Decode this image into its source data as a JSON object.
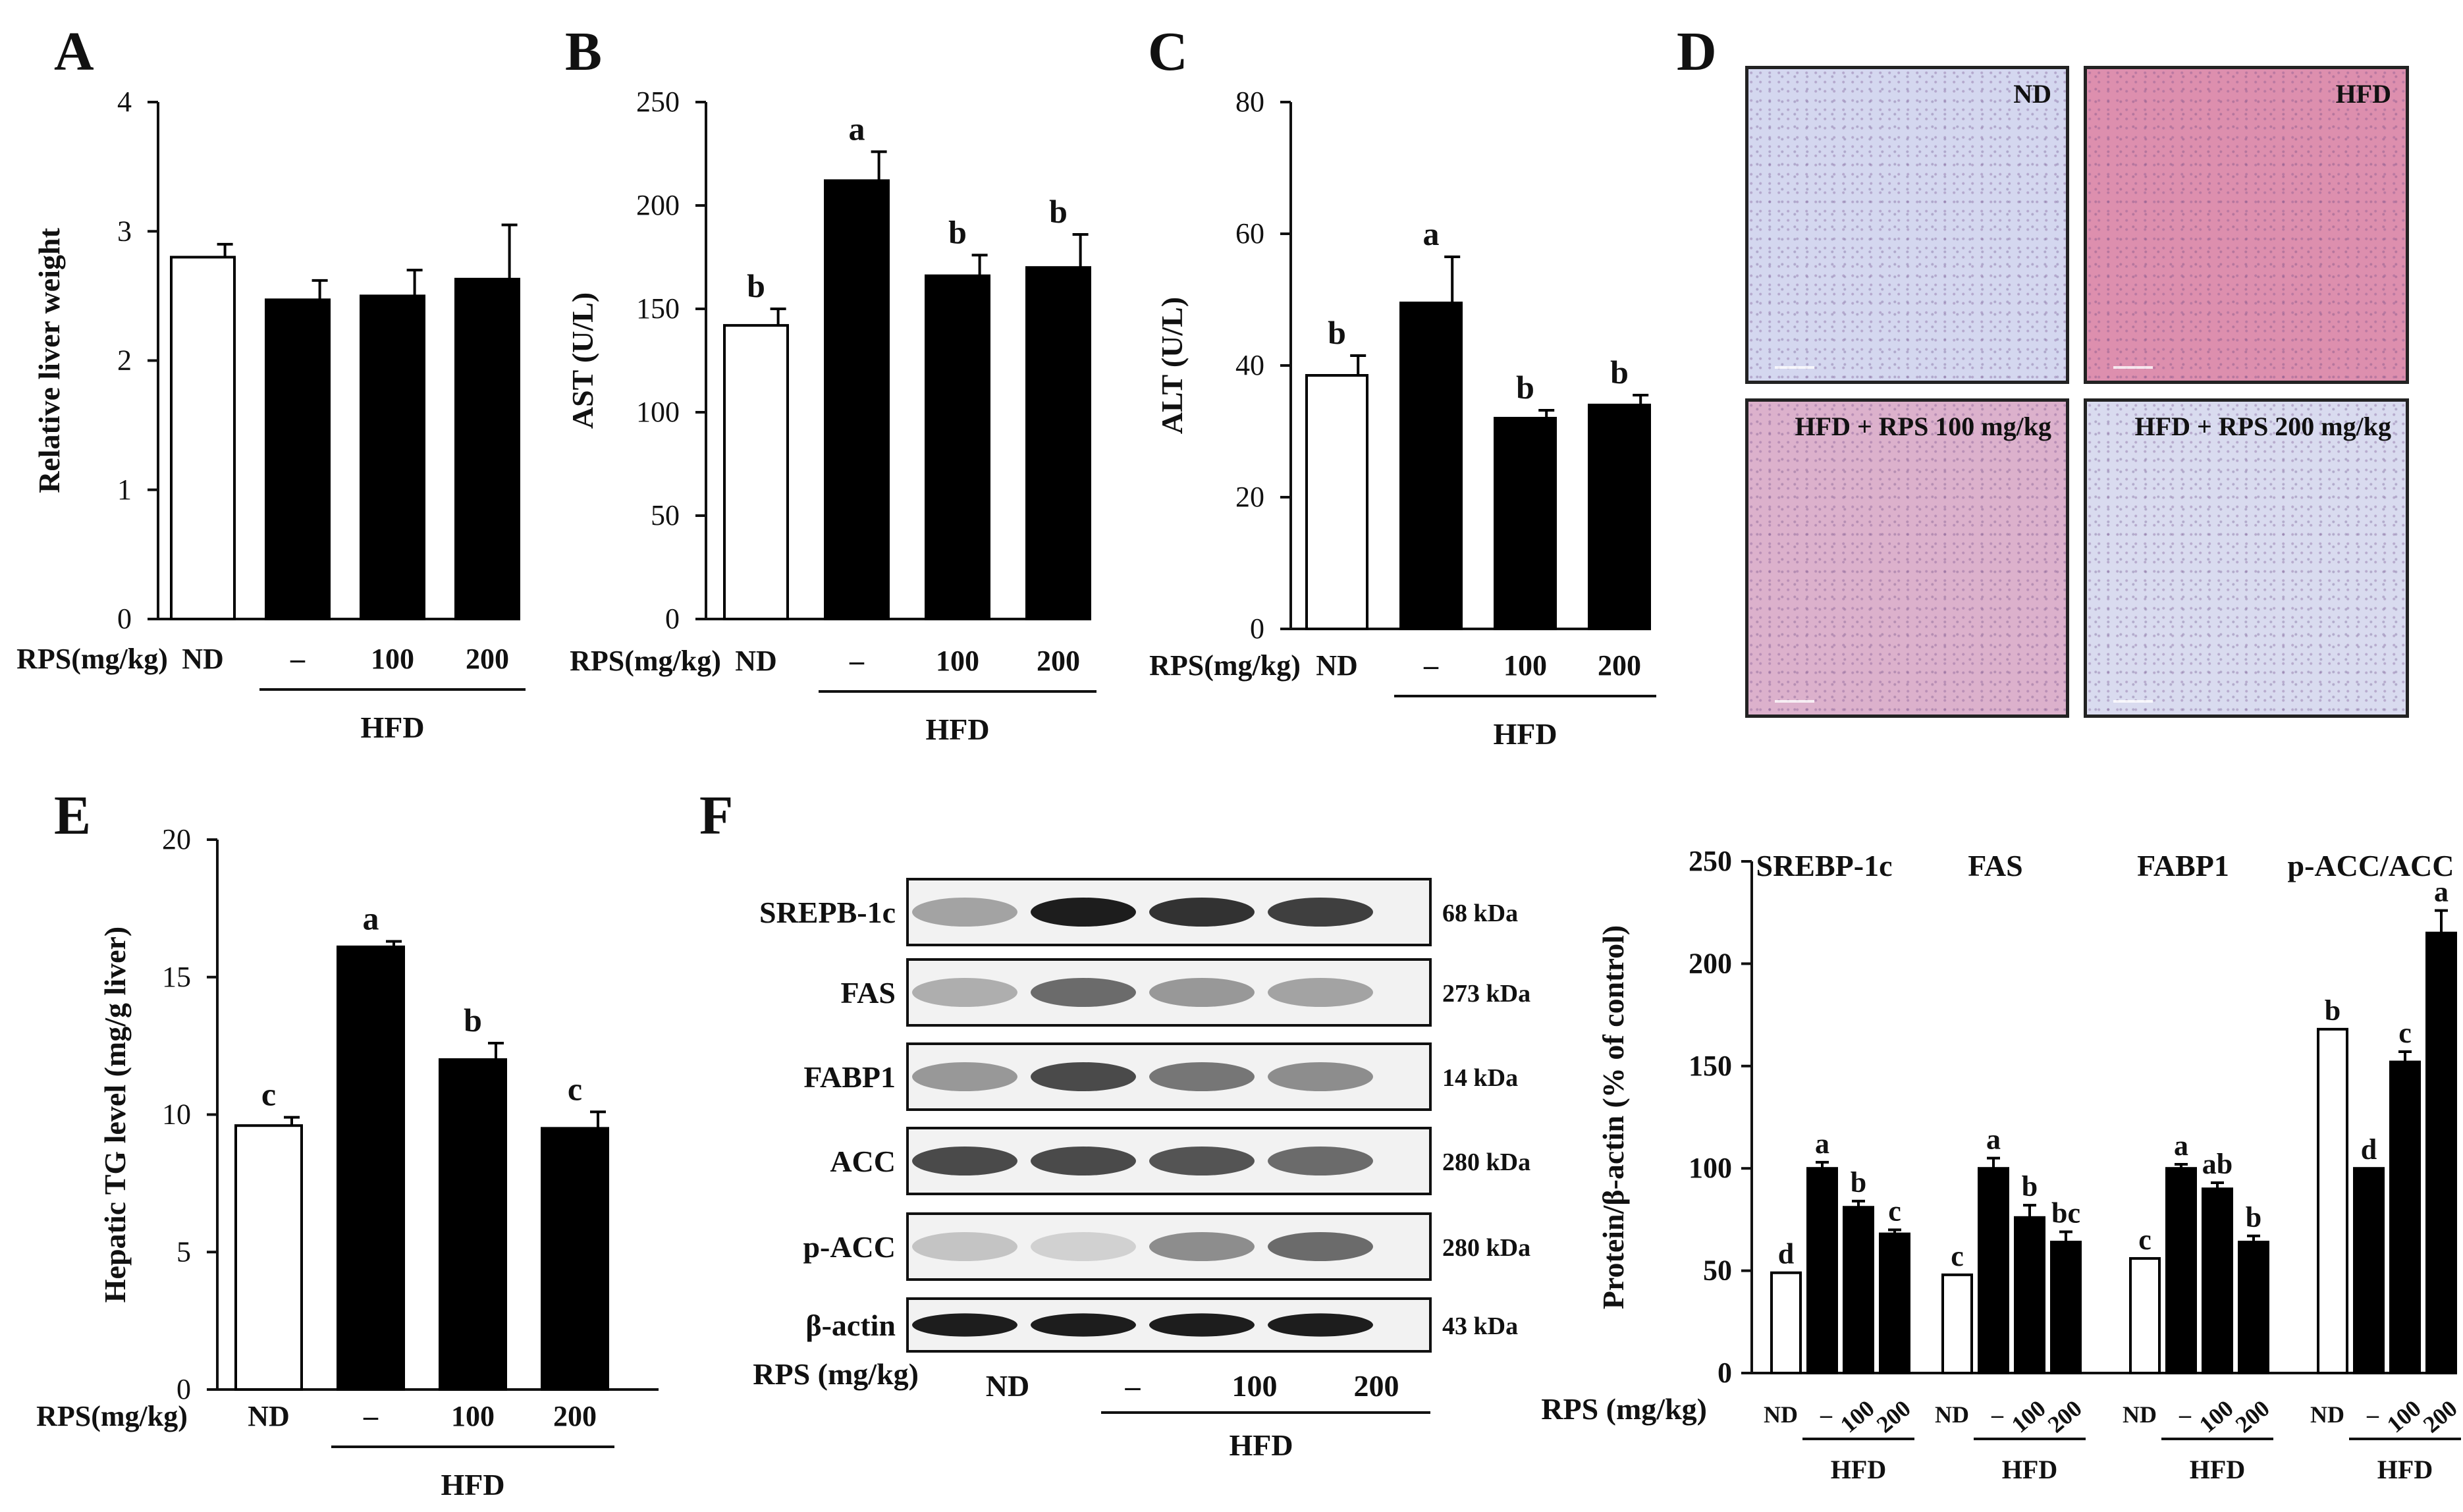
{
  "panel_letters": [
    "A",
    "B",
    "C",
    "D",
    "E",
    "F"
  ],
  "x_axis": {
    "rps_label": "RPS (mg/kg)",
    "rps_label_compact": "RPS(mg/kg)",
    "groups": [
      "ND",
      "–",
      "100",
      "200"
    ],
    "hfd": "HFD"
  },
  "micrographs": {
    "labels": [
      "ND",
      "HFD",
      "HFD + RPS 100 mg/kg",
      "HFD + RPS 200 mg/kg"
    ],
    "colors": [
      "#d4d7ef",
      "#dd8fae",
      "#dcb1cc",
      "#d9dbef"
    ]
  },
  "western": {
    "proteins": [
      "SREPB-1c",
      "FAS",
      "FABP1",
      "ACC",
      "p-ACC",
      "β-actin"
    ],
    "sizes": [
      "68 kDa",
      "273 kDa",
      "14 kDa",
      "280 kDa",
      "280 kDa",
      "43 kDa"
    ],
    "lane_labels": [
      "ND",
      "–",
      "100",
      "200"
    ],
    "rps_label": "RPS (mg/kg)",
    "hfd": "HFD"
  },
  "chart_data": [
    {
      "panel": "A",
      "type": "bar",
      "categories": [
        "ND",
        "–",
        "100",
        "200"
      ],
      "values": [
        2.8,
        2.47,
        2.5,
        2.63
      ],
      "errors": [
        0.1,
        0.15,
        0.2,
        0.42
      ],
      "letters": [
        "",
        "",
        "",
        ""
      ],
      "ylabel": "Relative liver weight",
      "ylim": [
        0,
        4
      ],
      "yticks": [
        "0",
        "1",
        "2",
        "3",
        "4"
      ],
      "fills": [
        "#ffffff",
        "#000000",
        "#000000",
        "#000000"
      ]
    },
    {
      "panel": "B",
      "type": "bar",
      "categories": [
        "ND",
        "–",
        "100",
        "200"
      ],
      "values": [
        142,
        212,
        166,
        170
      ],
      "errors": [
        8,
        14,
        10,
        16
      ],
      "letters": [
        "b",
        "a",
        "b",
        "b"
      ],
      "ylabel": "AST (U/L)",
      "ylim": [
        0,
        250
      ],
      "yticks": [
        "0",
        "50",
        "100",
        "150",
        "200",
        "250"
      ],
      "fills": [
        "#ffffff",
        "#000000",
        "#000000",
        "#000000"
      ]
    },
    {
      "panel": "C",
      "type": "bar",
      "categories": [
        "ND",
        "–",
        "100",
        "200"
      ],
      "values": [
        38.5,
        49.5,
        32,
        34
      ],
      "errors": [
        3,
        7,
        1.2,
        1.5
      ],
      "letters": [
        "b",
        "a",
        "b",
        "b"
      ],
      "ylabel": "ALT (U/L)",
      "ylim": [
        0,
        80
      ],
      "yticks": [
        "0",
        "20",
        "40",
        "60",
        "80"
      ],
      "fills": [
        "#ffffff",
        "#000000",
        "#000000",
        "#000000"
      ]
    },
    {
      "panel": "E",
      "type": "bar",
      "categories": [
        "ND",
        "–",
        "100",
        "200"
      ],
      "values": [
        9.6,
        16.1,
        12,
        9.5
      ],
      "errors": [
        0.3,
        0.2,
        0.6,
        0.6
      ],
      "letters": [
        "c",
        "a",
        "b",
        "c"
      ],
      "ylabel": "Hepatic TG level (mg/g liver)",
      "ylim": [
        0,
        20
      ],
      "yticks": [
        "0",
        "5",
        "10",
        "15",
        "20"
      ],
      "fills": [
        "#ffffff",
        "#000000",
        "#000000",
        "#000000"
      ]
    },
    {
      "panel": "F",
      "type": "bar",
      "ylabel": "Protein/β-actin (% of control)",
      "ylim": [
        0,
        250
      ],
      "yticks": [
        "0",
        "50",
        "100",
        "150",
        "200",
        "250"
      ],
      "groups": [
        {
          "name": "SREBP-1c",
          "categories": [
            "ND",
            "–",
            "100",
            "200"
          ],
          "values": [
            49,
            100,
            81,
            68
          ],
          "errors": [
            0,
            3,
            3,
            2
          ],
          "letters": [
            "d",
            "a",
            "b",
            "c"
          ]
        },
        {
          "name": "FAS",
          "categories": [
            "ND",
            "–",
            "100",
            "200"
          ],
          "values": [
            48,
            100,
            76,
            64
          ],
          "errors": [
            0,
            5,
            6,
            5
          ],
          "letters": [
            "c",
            "a",
            "b",
            "bc"
          ]
        },
        {
          "name": "FABP1",
          "categories": [
            "ND",
            "–",
            "100",
            "200"
          ],
          "values": [
            56,
            100,
            90,
            64
          ],
          "errors": [
            0,
            2,
            3,
            3
          ],
          "letters": [
            "c",
            "a",
            "ab",
            "b"
          ]
        },
        {
          "name": "p-ACC/ACC",
          "categories": [
            "ND",
            "–",
            "100",
            "200"
          ],
          "values": [
            168,
            100,
            152,
            215
          ],
          "errors": [
            0,
            0,
            5,
            11
          ],
          "letters": [
            "b",
            "d",
            "c",
            "a"
          ]
        }
      ],
      "fills": [
        "#ffffff",
        "#000000",
        "#000000",
        "#000000"
      ]
    }
  ]
}
